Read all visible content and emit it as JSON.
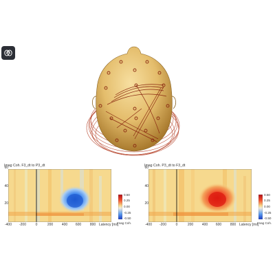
{
  "toolbar": {
    "brain_button_icon": "brain-icon"
  },
  "panels": [
    {
      "title": "Imag Coh. F3_dt to P3_dt",
      "y_ticks": [
        "60",
        "40",
        "20"
      ],
      "x_ticks": [
        "-400",
        "-200",
        "0",
        "200",
        "400",
        "600",
        "800"
      ],
      "x_label": "Latency [ms]",
      "colorbar_ticks": [
        "0.50",
        "0.25",
        "0.00",
        "-0.25",
        "-0.50"
      ],
      "colorbar_label": "Imag Coh."
    },
    {
      "title": "Imag Coh. P3_dt to F3_dt",
      "y_ticks": [
        "60",
        "40",
        "20"
      ],
      "x_ticks": [
        "-400",
        "-200",
        "0",
        "200",
        "400",
        "600",
        "800"
      ],
      "x_label": "Latency [ms]",
      "colorbar_ticks": [
        "0.50",
        "0.25",
        "0.00",
        "-0.25",
        "-0.50"
      ],
      "colorbar_label": "Imag Coh."
    }
  ],
  "colors": {
    "background_map": "#f6d98e",
    "positive": "#e8321e",
    "negative": "#2b6fe0",
    "head_skin": "#e7c47a",
    "sensor_line": "#8b2a12",
    "button_bg": "#2c2f36"
  }
}
